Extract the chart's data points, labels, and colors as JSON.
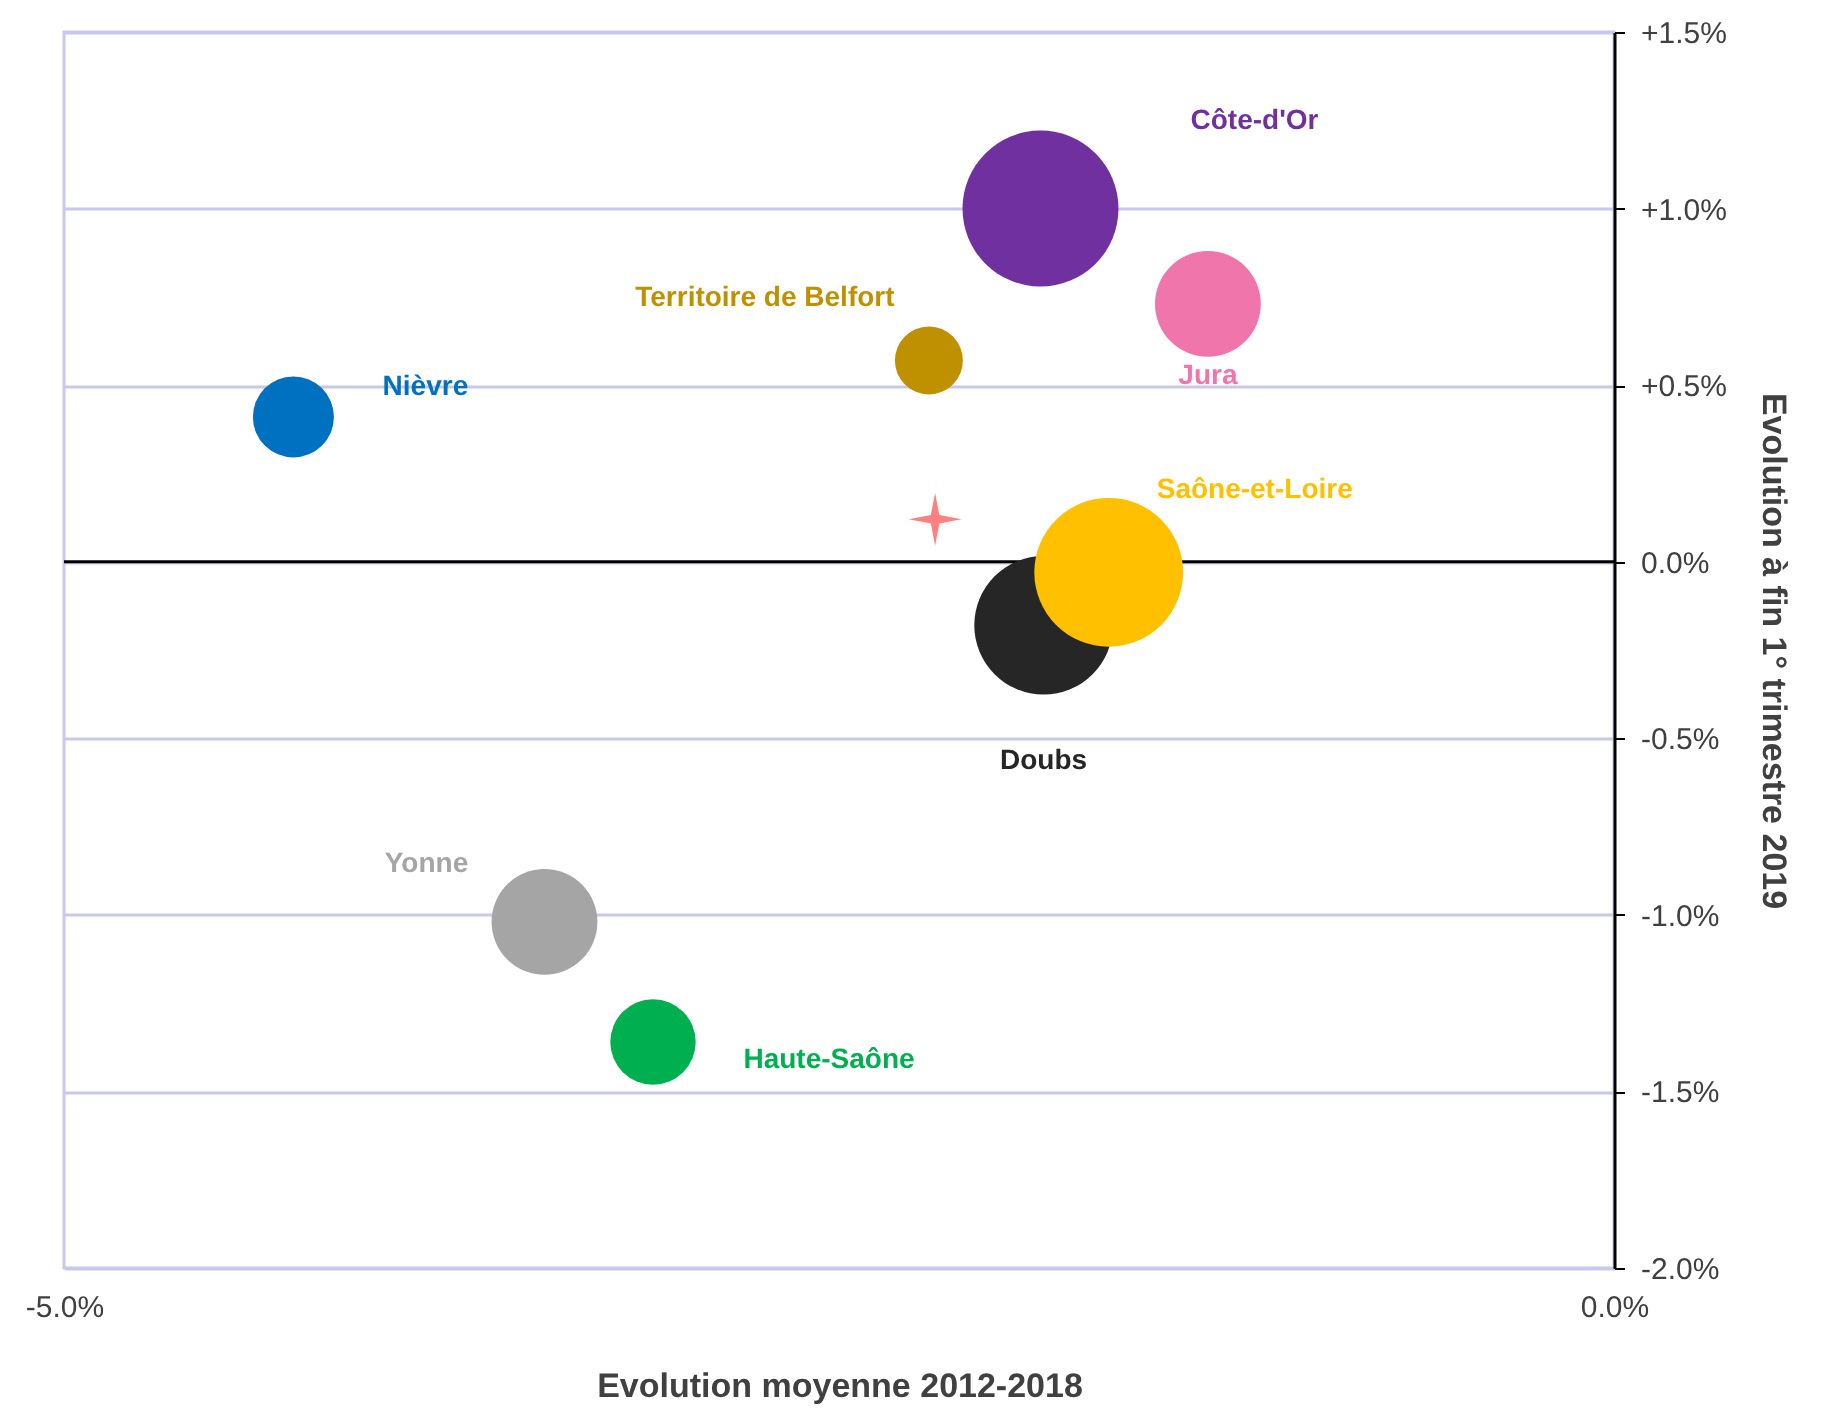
{
  "chart_data": {
    "type": "bubble",
    "xlabel": "Evolution moyenne 2012-2018",
    "ylabel": "Evolution à fin 1° trimestre 2019",
    "series": [
      {
        "name": "Nièvre",
        "color": "#0070c0",
        "x": [
          -4.26
        ],
        "values": [
          0.41
        ],
        "sizes": [
          0.27
        ]
      },
      {
        "name": "Territoire de Belfort",
        "color": "#bf9000",
        "x": [
          -2.21
        ],
        "values": [
          0.57
        ],
        "sizes": [
          0.19
        ]
      },
      {
        "name": "Côte-d'Or",
        "color": "#7030a0",
        "x": [
          -1.85
        ],
        "values": [
          1.0
        ],
        "sizes": [
          1
        ]
      },
      {
        "name": "Jura",
        "color": "#f075aa",
        "x": [
          -1.31
        ],
        "values": [
          0.73
        ],
        "sizes": [
          0.46
        ]
      },
      {
        "name": "Doubs",
        "color": "#262626",
        "x": [
          -1.84
        ],
        "values": [
          -0.18
        ],
        "sizes": [
          0.79
        ]
      },
      {
        "name": "Saône-et-Loire",
        "color": "#ffc000",
        "x": [
          -1.63
        ],
        "values": [
          -0.03
        ],
        "sizes": [
          0.91
        ]
      },
      {
        "name": "Yonne",
        "color": "#a5a5a5",
        "x": [
          -3.45
        ],
        "values": [
          -1.02
        ],
        "sizes": [
          0.46
        ]
      },
      {
        "name": "Haute-Saône",
        "color": "#00b050",
        "x": [
          -3.1
        ],
        "values": [
          -1.36
        ],
        "sizes": [
          0.3
        ]
      },
      {
        "type": "scatter",
        "marker": "star",
        "color": "#ff8080",
        "x": [
          -2.19
        ],
        "values": [
          0.12
        ]
      }
    ],
    "xlim": [
      -5,
      0
    ],
    "xticks": [
      {
        "value": -5,
        "label": "-5.0%"
      },
      {
        "value": 0,
        "label": "0.0%"
      }
    ],
    "ylim": [
      -2,
      1.5
    ],
    "yticks": [
      {
        "value": -2,
        "label": "-2.0%"
      },
      {
        "value": -1.5,
        "label": "-1.5%"
      },
      {
        "value": -1,
        "label": "-1.0%"
      },
      {
        "value": -0.5,
        "label": "-0.5%"
      },
      {
        "value": 0,
        "label": "0.0%"
      },
      {
        "value": 0.5,
        "label": "+0.5%"
      },
      {
        "value": 1,
        "label": "+1.0%"
      },
      {
        "value": 1.5,
        "label": "+1.5%"
      }
    ],
    "grid": "y",
    "legend": false,
    "ref_lines": [
      {
        "axis": "y",
        "value": 0,
        "color": "#000000"
      }
    ]
  }
}
